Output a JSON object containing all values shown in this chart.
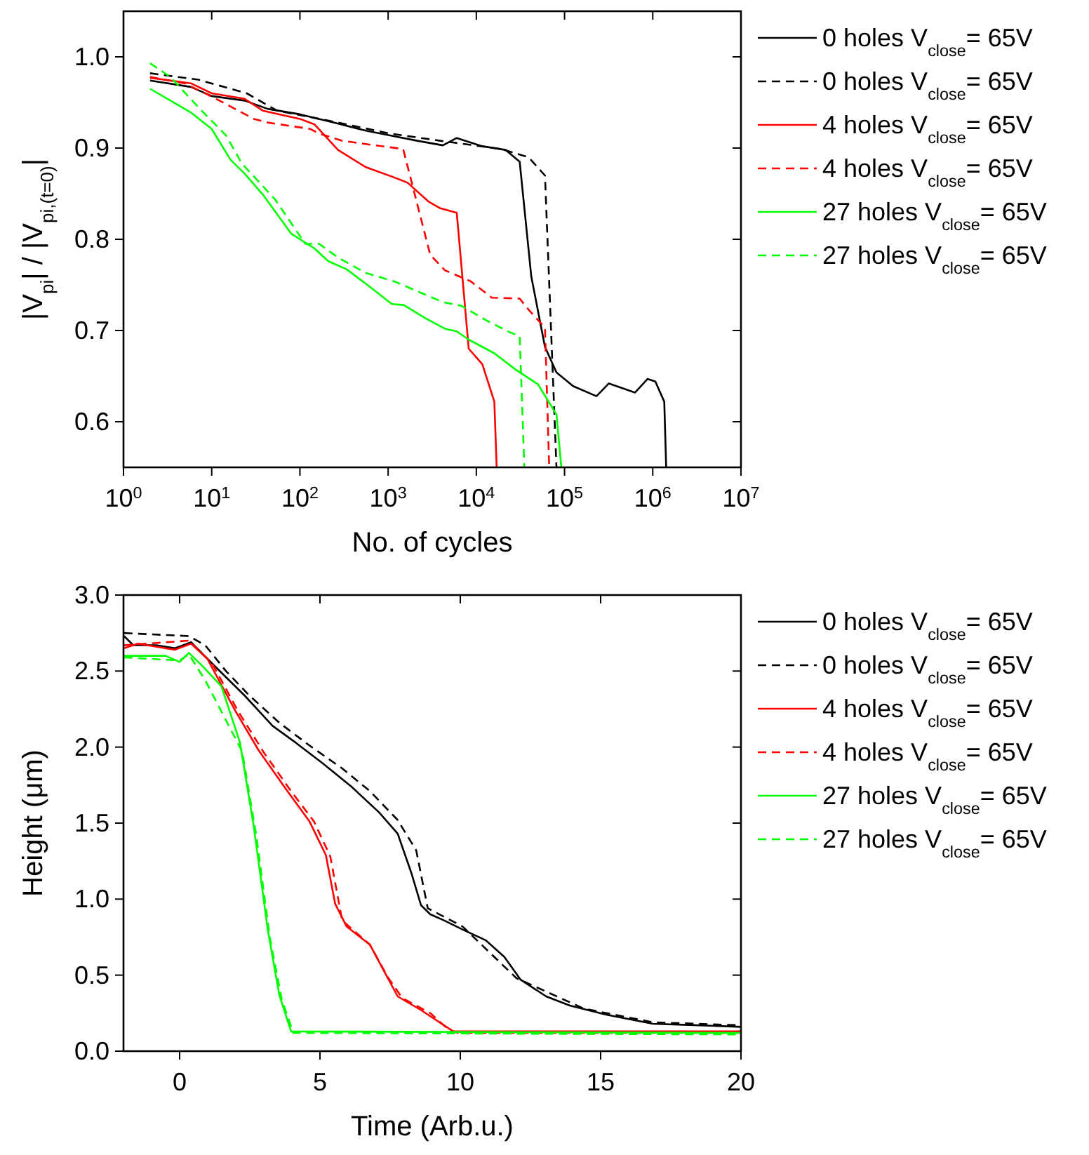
{
  "chart_data": [
    {
      "type": "line",
      "xlabel": "No. of cycles",
      "ylabel": "|V$_{pi}$| / |V$_{pi,(t=0)}$|",
      "log": "x",
      "xlim": [
        1,
        10000000
      ],
      "ylim": [
        0.55,
        1.05
      ],
      "xticks": [
        {
          "value": 1,
          "label": "10$^{0}$"
        },
        {
          "value": 10,
          "label": "10$^{1}$"
        },
        {
          "value": 100,
          "label": "10$^{2}$"
        },
        {
          "value": 1000,
          "label": "10$^{3}$"
        },
        {
          "value": 10000,
          "label": "10$^{4}$"
        },
        {
          "value": 100000,
          "label": "10$^{5}$"
        },
        {
          "value": 1000000,
          "label": "10$^{6}$"
        },
        {
          "value": 10000000,
          "label": "10$^{7}$"
        }
      ],
      "yticks": [
        {
          "value": 0.6,
          "label": "0.6"
        },
        {
          "value": 0.7,
          "label": "0.7"
        },
        {
          "value": 0.8,
          "label": "0.8"
        },
        {
          "value": 0.9,
          "label": "0.9"
        },
        {
          "value": 1.0,
          "label": "1.0"
        }
      ],
      "grid": false,
      "legend": "right",
      "series": [
        {
          "name": "0 holes V$_{close}$= 65V",
          "color": "#000000",
          "line_style": "solid",
          "x": [
            2,
            5.8,
            10,
            23.6,
            43,
            100,
            240,
            560,
            1030,
            2140,
            4170,
            6000,
            11700,
            21400,
            31000,
            42000,
            60000,
            81000,
            125000,
            230000,
            318000,
            630000,
            875000,
            1070000,
            1350000,
            1420000
          ],
          "values": [
            0.974,
            0.967,
            0.957,
            0.952,
            0.943,
            0.937,
            0.928,
            0.919,
            0.914,
            0.908,
            0.903,
            0.911,
            0.902,
            0.898,
            0.885,
            0.759,
            0.682,
            0.654,
            0.639,
            0.628,
            0.642,
            0.632,
            0.647,
            0.644,
            0.622,
            0.55
          ]
        },
        {
          "name": "0 holes V$_{close}$= 65V",
          "color": "#000000",
          "line_style": "dashed",
          "x": [
            2,
            3.4,
            7,
            25,
            55,
            240,
            1030,
            3900,
            19000,
            39000,
            60000,
            81000
          ],
          "values": [
            0.982,
            0.979,
            0.975,
            0.96,
            0.941,
            0.929,
            0.916,
            0.908,
            0.899,
            0.89,
            0.87,
            0.55
          ]
        },
        {
          "name": "4 holes V$_{close}$= 65V",
          "color": "#ff0000",
          "line_style": "solid",
          "x": [
            2,
            5.8,
            10,
            23.6,
            38,
            100,
            146,
            270,
            560,
            1160,
            1660,
            2900,
            3900,
            6000,
            8200,
            11700,
            16000,
            17000
          ],
          "values": [
            0.977,
            0.971,
            0.96,
            0.954,
            0.941,
            0.932,
            0.926,
            0.898,
            0.879,
            0.868,
            0.862,
            0.841,
            0.834,
            0.829,
            0.68,
            0.663,
            0.622,
            0.55
          ]
        },
        {
          "name": "4 holes V$_{close}$= 65V",
          "color": "#ff0000",
          "line_style": "dashed",
          "x": [
            2,
            4.9,
            10.7,
            30,
            43,
            130,
            165,
            300,
            710,
            1480,
            3000,
            4400,
            8600,
            15000,
            31000,
            39000,
            60000,
            67000
          ],
          "values": [
            0.978,
            0.971,
            0.955,
            0.932,
            0.928,
            0.921,
            0.916,
            0.908,
            0.903,
            0.899,
            0.783,
            0.766,
            0.754,
            0.736,
            0.735,
            0.723,
            0.703,
            0.55
          ]
        },
        {
          "name": "27 holes V$_{close}$= 65V",
          "color": "#00ff00",
          "line_style": "solid",
          "x": [
            2,
            5.8,
            10,
            16.4,
            23.6,
            38,
            80,
            146,
            210,
            340,
            600,
            1100,
            1500,
            2700,
            4400,
            6000,
            8200,
            16000,
            28000,
            50000,
            81000,
            92000
          ],
          "values": [
            0.965,
            0.939,
            0.921,
            0.887,
            0.872,
            0.849,
            0.806,
            0.79,
            0.776,
            0.767,
            0.749,
            0.729,
            0.728,
            0.713,
            0.702,
            0.699,
            0.69,
            0.675,
            0.657,
            0.641,
            0.608,
            0.55
          ]
        },
        {
          "name": "27 holes V$_{close}$= 65V",
          "color": "#00ff00",
          "line_style": "dashed",
          "x": [
            2,
            3.4,
            7.5,
            14.5,
            22,
            52,
            115,
            165,
            270,
            560,
            1160,
            2400,
            4200,
            6800,
            13000,
            24000,
            31000,
            35000
          ],
          "values": [
            0.993,
            0.978,
            0.942,
            0.914,
            0.883,
            0.844,
            0.795,
            0.795,
            0.78,
            0.763,
            0.754,
            0.741,
            0.731,
            0.727,
            0.711,
            0.698,
            0.694,
            0.55
          ]
        }
      ]
    },
    {
      "type": "line",
      "xlabel": "Time (Arb.u.)",
      "ylabel": "Height (μm)",
      "xlim": [
        -2,
        20
      ],
      "ylim": [
        0,
        3.0
      ],
      "xticks": [
        0,
        5,
        10,
        15,
        20
      ],
      "yticks": [
        {
          "value": 0,
          "label": "0.0"
        },
        {
          "value": 0.5,
          "label": "0.5"
        },
        {
          "value": 1.0,
          "label": "1.0"
        },
        {
          "value": 1.5,
          "label": "1.5"
        },
        {
          "value": 2.0,
          "label": "2.0"
        },
        {
          "value": 2.5,
          "label": "2.5"
        },
        {
          "value": 3.0,
          "label": "3.0"
        }
      ],
      "grid": false,
      "legend": "right",
      "series": [
        {
          "name": "0 holes V$_{close}$= 65V",
          "color": "#000000",
          "line_style": "solid",
          "x": [
            -1.98,
            -1.65,
            -0.83,
            -0.17,
            0.41,
            0.83,
            1.65,
            2.31,
            3.31,
            4.13,
            5.12,
            6.12,
            7.11,
            7.77,
            8.26,
            8.6,
            8.93,
            9.42,
            10.08,
            10.9,
            11.57,
            12.15,
            13.06,
            13.9,
            15.2,
            16.86,
            18.5,
            20
          ],
          "values": [
            2.73,
            2.67,
            2.67,
            2.65,
            2.69,
            2.61,
            2.46,
            2.34,
            2.14,
            2.03,
            1.89,
            1.74,
            1.57,
            1.43,
            1.17,
            0.96,
            0.9,
            0.86,
            0.8,
            0.73,
            0.62,
            0.47,
            0.36,
            0.3,
            0.24,
            0.18,
            0.17,
            0.16
          ]
        },
        {
          "name": "0 holes V$_{close}$= 65V",
          "color": "#000000",
          "line_style": "dashed",
          "x": [
            -1.98,
            0.33,
            0.91,
            1.65,
            2.48,
            3.55,
            4.63,
            5.79,
            6.78,
            7.77,
            8.43,
            8.84,
            10.08,
            12.0,
            14.4,
            16.86,
            20
          ],
          "values": [
            2.75,
            2.73,
            2.67,
            2.5,
            2.34,
            2.16,
            2.01,
            1.86,
            1.71,
            1.52,
            1.32,
            0.94,
            0.82,
            0.48,
            0.28,
            0.19,
            0.17
          ]
        },
        {
          "name": "4 holes V$_{close}$= 65V",
          "color": "#ff0000",
          "line_style": "solid",
          "x": [
            -1.98,
            -1.49,
            -0.17,
            0.41,
            0.99,
            1.98,
            2.81,
            3.8,
            4.63,
            5.21,
            5.54,
            5.95,
            6.78,
            7.36,
            7.77,
            8.6,
            9.75,
            20
          ],
          "values": [
            2.65,
            2.68,
            2.64,
            2.68,
            2.58,
            2.24,
            1.98,
            1.72,
            1.51,
            1.29,
            0.97,
            0.82,
            0.7,
            0.5,
            0.36,
            0.27,
            0.13,
            0.13
          ]
        },
        {
          "name": "4 holes V$_{close}$= 65V",
          "color": "#ff0000",
          "line_style": "dashed",
          "x": [
            -1.98,
            0.33,
            1.16,
            2.07,
            2.98,
            3.97,
            4.79,
            5.37,
            5.79,
            6.78,
            7.44,
            7.93,
            8.93,
            9.59,
            9.92,
            20
          ],
          "values": [
            2.67,
            2.7,
            2.55,
            2.24,
            1.97,
            1.71,
            1.51,
            1.28,
            0.86,
            0.7,
            0.48,
            0.35,
            0.25,
            0.14,
            0.12,
            0.12
          ]
        },
        {
          "name": "27 holes V$_{close}$= 65V",
          "color": "#00ff00",
          "line_style": "solid",
          "x": [
            -1.98,
            -1.16,
            -0.5,
            0,
            0.33,
            0.83,
            1.49,
            2.15,
            2.64,
            3.14,
            3.55,
            3.97,
            20
          ],
          "values": [
            2.6,
            2.6,
            2.6,
            2.56,
            2.62,
            2.53,
            2.4,
            2.03,
            1.48,
            0.8,
            0.37,
            0.13,
            0.12
          ]
        },
        {
          "name": "27 holes V$_{close}$= 65V",
          "color": "#00ff00",
          "line_style": "dashed",
          "x": [
            -1.98,
            0,
            0.33,
            0.91,
            2.23,
            2.73,
            3.22,
            3.64,
            4.05,
            20
          ],
          "values": [
            2.59,
            2.57,
            2.61,
            2.44,
            1.97,
            1.42,
            0.74,
            0.34,
            0.12,
            0.11
          ]
        }
      ]
    }
  ]
}
